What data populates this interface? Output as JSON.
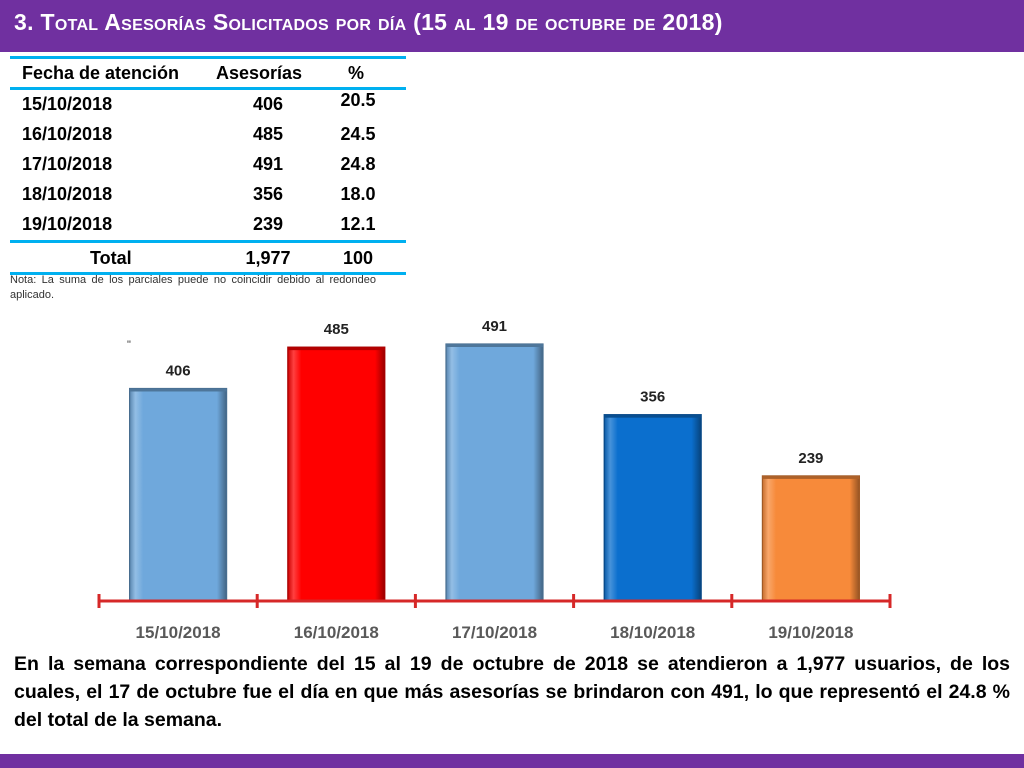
{
  "slide": {
    "title": "3.  Total Asesorías Solicitados por día  (15 al 19 de octubre de 2018)",
    "note": "Nota: La suma de los parciales puede no coincidir debido al redondeo aplicado.",
    "stray_mark": "\"",
    "summary": "En la semana correspondiente del 15 al 19 de octubre de 2018 se atendieron a 1,977 usuarios, de los cuales, el 17 de octubre fue el día en que más asesorías se brindaron con 491, lo que representó el 24.8 % del total de la semana.",
    "accent_color": "#7030a0",
    "rule_color": "#00b0f0"
  },
  "table": {
    "headers": [
      "Fecha de atención",
      "Asesorías",
      "%"
    ],
    "rows": [
      [
        "15/10/2018",
        "406",
        "20.5"
      ],
      [
        "16/10/2018",
        "485",
        "24.5"
      ],
      [
        "17/10/2018",
        "491",
        "24.8"
      ],
      [
        "18/10/2018",
        "356",
        "18.0"
      ],
      [
        "19/10/2018",
        "239",
        "12.1"
      ]
    ],
    "total": [
      "Total",
      "1,977",
      "100"
    ]
  },
  "chart_data": {
    "type": "bar",
    "categories": [
      "15/10/2018",
      "16/10/2018",
      "17/10/2018",
      "18/10/2018",
      "19/10/2018"
    ],
    "values": [
      406,
      485,
      491,
      356,
      239
    ],
    "data_labels": [
      "406",
      "485",
      "491",
      "356",
      "239"
    ],
    "bar_colors": [
      "#6fa8dc",
      "#ff0000",
      "#6fa8dc",
      "#0b6fce",
      "#f78a3a"
    ],
    "axis_color": "#d62828",
    "title": "",
    "xlabel": "",
    "ylabel": "",
    "ylim": [
      0,
      491
    ],
    "grid": false,
    "legend": "none"
  }
}
